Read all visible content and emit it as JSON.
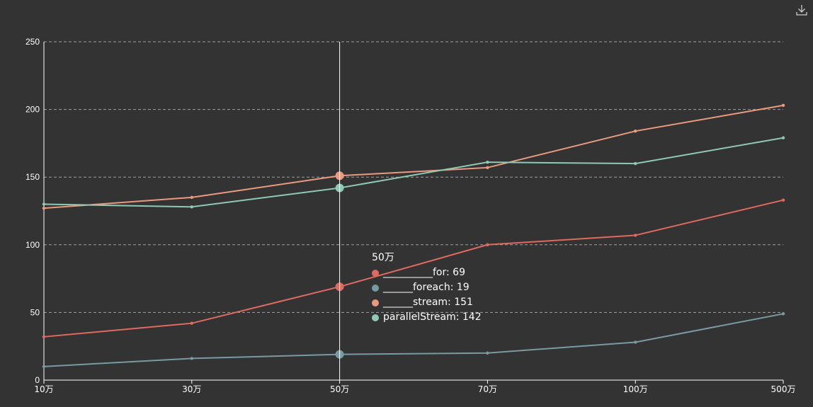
{
  "chart_data": {
    "type": "line",
    "categories": [
      "10万",
      "30万",
      "50万",
      "70万",
      "100万",
      "500万"
    ],
    "ylim": [
      0,
      250
    ],
    "yticks": [
      0,
      50,
      100,
      150,
      200,
      250
    ],
    "grid": true,
    "series": [
      {
        "name": "__________for",
        "color": "#e06a5f",
        "values": [
          32,
          42,
          69,
          100,
          107,
          133
        ]
      },
      {
        "name": "______foreach",
        "color": "#7a9aa2",
        "values": [
          10,
          16,
          19,
          20,
          28,
          49
        ]
      },
      {
        "name": "______stream",
        "color": "#eb9a7e",
        "values": [
          127,
          135,
          151,
          157,
          184,
          203
        ]
      },
      {
        "name": "parallelStream",
        "color": "#8ec9b4",
        "values": [
          130,
          128,
          142,
          161,
          160,
          179
        ]
      }
    ],
    "tooltip": {
      "category": "50万",
      "category_index": 2,
      "items": [
        {
          "label": "__________for: 69",
          "color": "#e06a5f"
        },
        {
          "label": "______foreach: 19",
          "color": "#7a9aa2"
        },
        {
          "label": "______stream: 151",
          "color": "#eb9a7e"
        },
        {
          "label": "parallelStream: 142",
          "color": "#8ec9b4"
        }
      ]
    }
  },
  "toolbar": {
    "download_icon": "download-icon"
  }
}
